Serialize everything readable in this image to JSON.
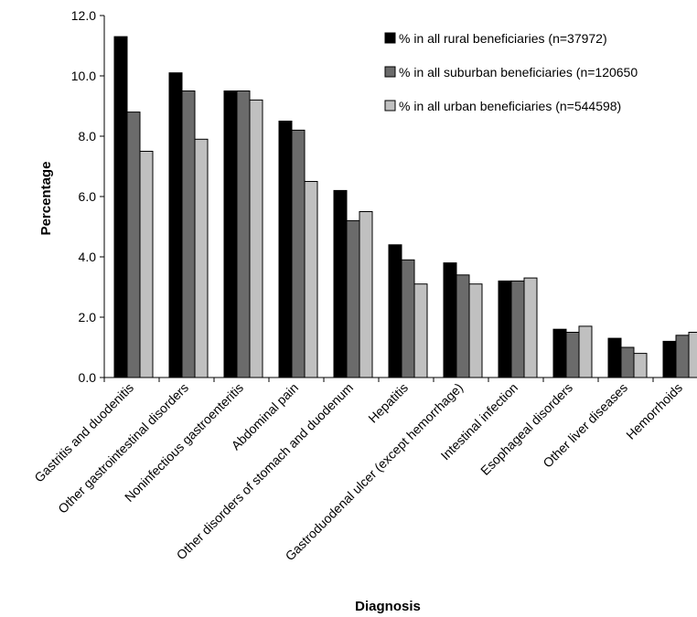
{
  "chart_data": {
    "type": "bar",
    "title": "",
    "xlabel": "Diagnosis",
    "ylabel": "Percentage",
    "ylim": [
      0,
      12
    ],
    "yticks": [
      "0.0",
      "2.0",
      "4.0",
      "6.0",
      "8.0",
      "10.0",
      "12.0"
    ],
    "grid": false,
    "legend_position": "top-right",
    "categories": [
      "Gastritis and duodenitis",
      "Other gastrointestinal disorders",
      "Noninfectious gastroenteritis",
      "Abdominal pain",
      "Other disorders of stomach and duodenum",
      "Hepatitis",
      "Gastroduodenal ulcer (except hemorrhage)",
      "Intestinal infection",
      "Esophageal disorders",
      "Other liver diseases",
      "Hemorrhoids"
    ],
    "series": [
      {
        "name": "% in all rural beneficiaries (n=37972)",
        "color": "#000000",
        "values": [
          11.3,
          10.1,
          9.5,
          8.5,
          6.2,
          4.4,
          3.8,
          3.2,
          1.6,
          1.3,
          1.2
        ]
      },
      {
        "name": "% in all suburban beneficiaries (n=120650",
        "color": "#6b6b6b",
        "values": [
          8.8,
          9.5,
          9.5,
          8.2,
          5.2,
          3.9,
          3.4,
          3.2,
          1.5,
          1.0,
          1.4
        ]
      },
      {
        "name": "% in all urban beneficiaries (n=544598)",
        "color": "#c0c0c0",
        "values": [
          7.5,
          7.9,
          9.2,
          6.5,
          5.5,
          3.1,
          3.1,
          3.3,
          1.7,
          0.8,
          1.5
        ]
      }
    ]
  }
}
